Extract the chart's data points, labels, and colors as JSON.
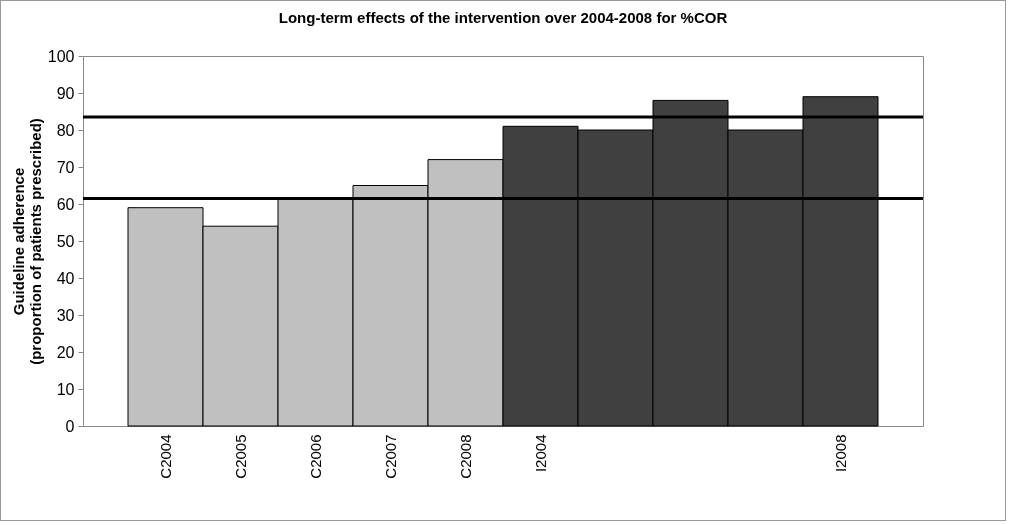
{
  "chart_data": {
    "type": "bar",
    "title": "Long-term effects of the intervention over 2004-2008 for %COR",
    "ylabel": "Guideline adherence\n(proportion of patients prescribed)",
    "categories": [
      "C2004",
      "C2005",
      "C2006",
      "C2007",
      "C2008",
      "I2004",
      null,
      null,
      null,
      "I2008"
    ],
    "values": [
      59,
      54,
      61.5,
      65,
      72,
      81,
      80,
      88,
      80,
      89
    ],
    "colors": [
      "#c0c0c0",
      "#c0c0c0",
      "#c0c0c0",
      "#c0c0c0",
      "#c0c0c0",
      "#404040",
      "#404040",
      "#404040",
      "#404040",
      "#404040"
    ],
    "ylim": [
      0,
      100
    ],
    "yticks": [
      0,
      10,
      20,
      30,
      40,
      50,
      60,
      70,
      80,
      90,
      100
    ],
    "ref_lines": [
      {
        "axis": "y",
        "value": 83.5,
        "color": "#000000"
      },
      {
        "axis": "y",
        "value": 61.5,
        "color": "#000000"
      }
    ],
    "grid": false
  }
}
